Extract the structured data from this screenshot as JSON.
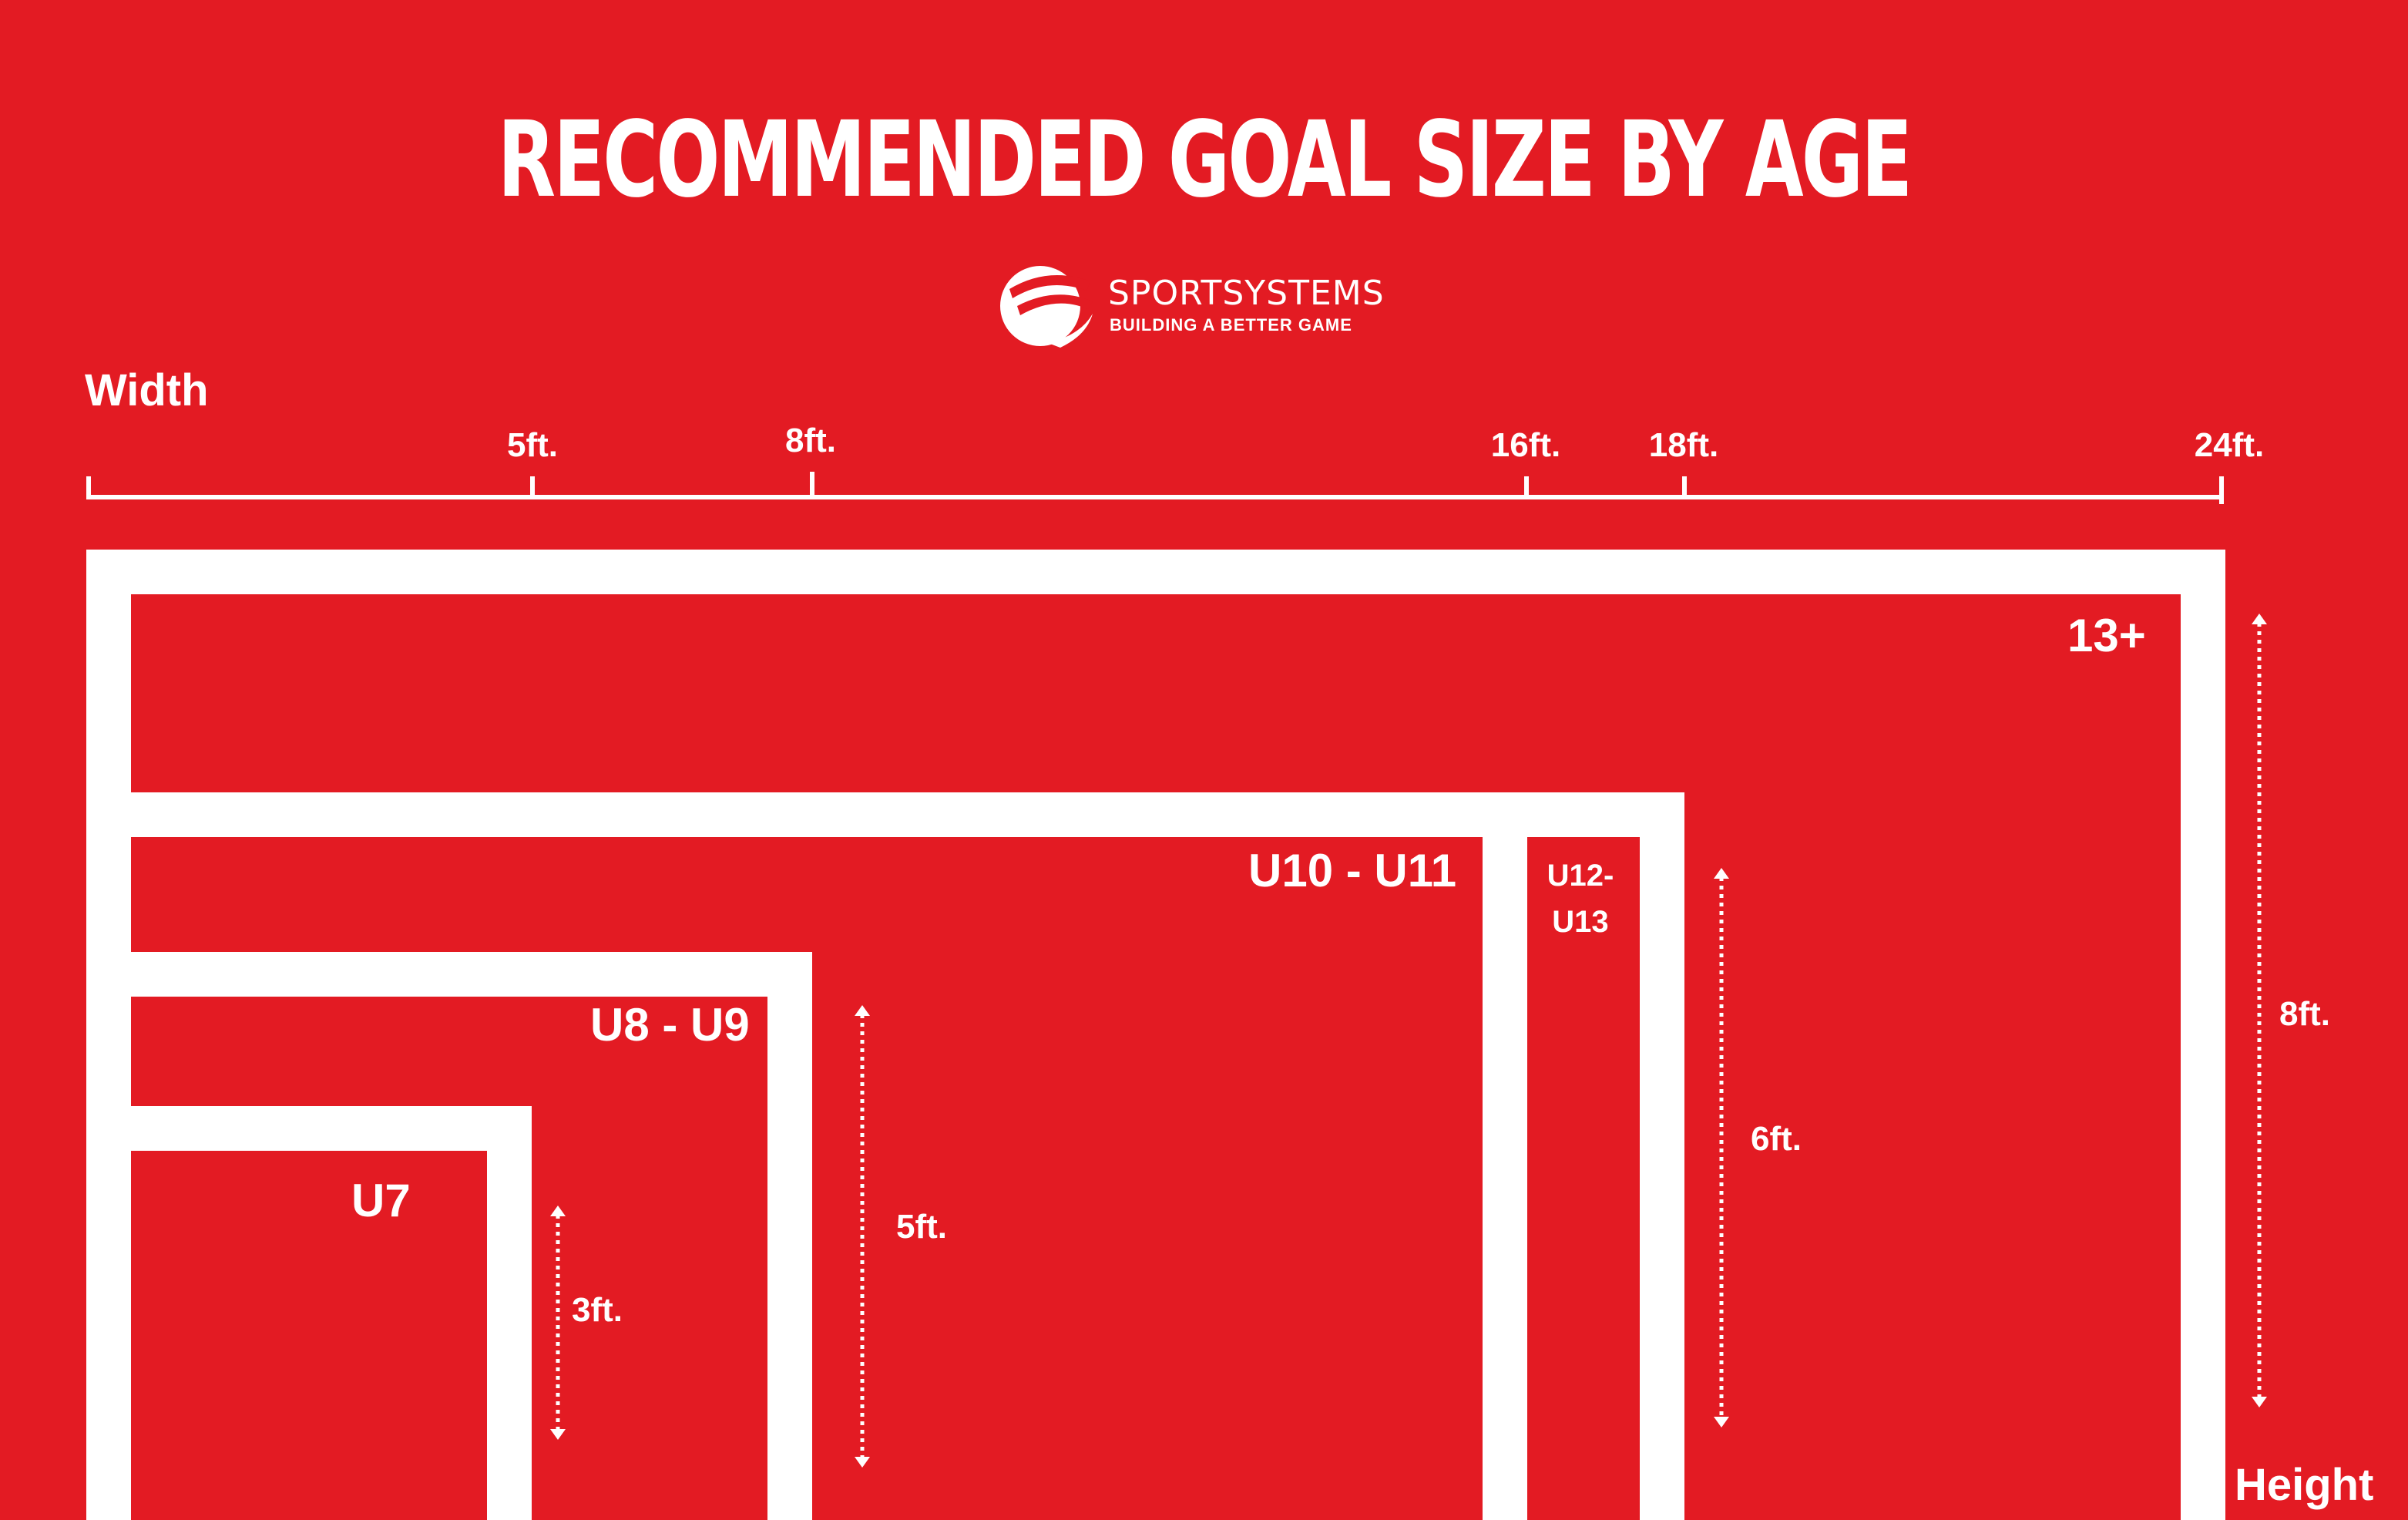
{
  "title": "RECOMMENDED GOAL SIZE BY AGE",
  "brand": {
    "name": "SPORTSYSTEMS",
    "tagline": "BUILDING A BETTER GAME",
    "logo_icon": "soccer-ball-swoosh-icon"
  },
  "width_axis": {
    "label": "Width",
    "ticks": [
      "5ft.",
      "8ft.",
      "16ft.",
      "18ft.",
      "24ft."
    ]
  },
  "height_axis": {
    "label": "Height"
  },
  "goals": [
    {
      "age": "U7",
      "height_label": "3ft."
    },
    {
      "age": "U8 - U9",
      "height_label": "5ft."
    },
    {
      "age": "U10 - U11",
      "height_label": ""
    },
    {
      "age": "U12-\nU13",
      "age_line1": "U12-",
      "age_line2": "U13",
      "height_label": "6ft."
    },
    {
      "age": "13+",
      "height_label": "8ft."
    }
  ],
  "colors": {
    "background": "#e31b23",
    "foreground": "#ffffff"
  }
}
